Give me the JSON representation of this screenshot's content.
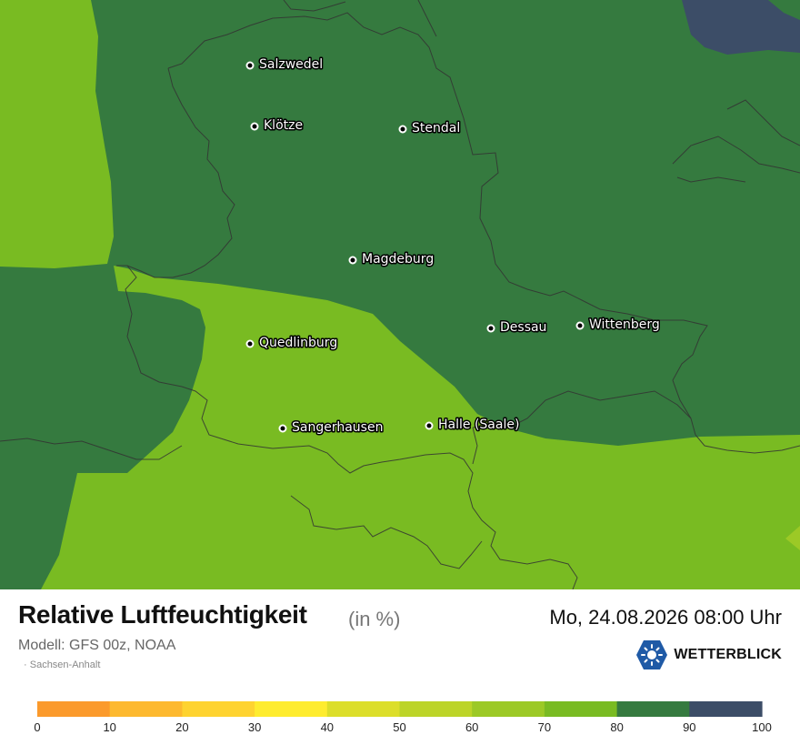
{
  "map": {
    "cities": [
      {
        "name": "Salzwedel"
      },
      {
        "name": "Klötze"
      },
      {
        "name": "Stendal"
      },
      {
        "name": "Magdeburg"
      },
      {
        "name": "Quedlinburg"
      },
      {
        "name": "Dessau"
      },
      {
        "name": "Wittenberg"
      },
      {
        "name": "Sangerhausen"
      },
      {
        "name": "Halle (Saale)"
      }
    ]
  },
  "info": {
    "title": "Relative Luftfeuchtigkeit",
    "unit": "(in %)",
    "model": "Modell: GFS 00z, NOAA",
    "region": "Sachsen-Anhalt",
    "datetime": "Mo, 24.08.2026 08:00 Uhr",
    "brand": "WETTERBLICK"
  },
  "legend": {
    "colors": [
      "#fb9a2c",
      "#fdb92f",
      "#fed330",
      "#feec2f",
      "#dcde2a",
      "#bcd428",
      "#9cc926",
      "#79bb22",
      "#357a3f",
      "#3c4d67"
    ],
    "ticks": [
      "0",
      "10",
      "20",
      "30",
      "40",
      "50",
      "60",
      "70",
      "80",
      "90",
      "100"
    ]
  },
  "colors": {
    "humidity_80_90": "#357a3f",
    "humidity_70_80": "#79bb22",
    "humidity_90_100": "#3c4d67",
    "humidity_60_70": "#9cc926"
  }
}
